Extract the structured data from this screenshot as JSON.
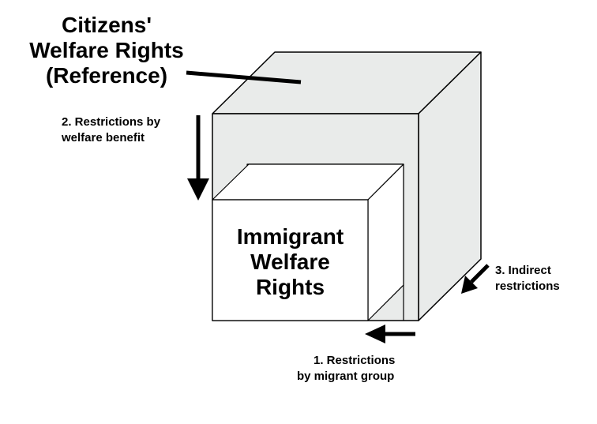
{
  "outer_box": {
    "label_lines": [
      "Citizens'",
      "Welfare Rights",
      "(Reference)"
    ],
    "fill": "#e9ebea"
  },
  "inner_box": {
    "label_lines": [
      "Immigrant",
      "Welfare",
      "Rights"
    ],
    "fill": "#ffffff"
  },
  "arrows": [
    {
      "id": "restriction-2",
      "label_lines": [
        "2. Restrictions by",
        "welfare benefit"
      ]
    },
    {
      "id": "restriction-3",
      "label_lines": [
        "3. Indirect",
        "restrictions"
      ]
    },
    {
      "id": "restriction-1",
      "label_lines": [
        "1. Restrictions",
        "by migrant group"
      ]
    }
  ],
  "colors": {
    "stroke": "#000000",
    "background": "#ffffff"
  }
}
